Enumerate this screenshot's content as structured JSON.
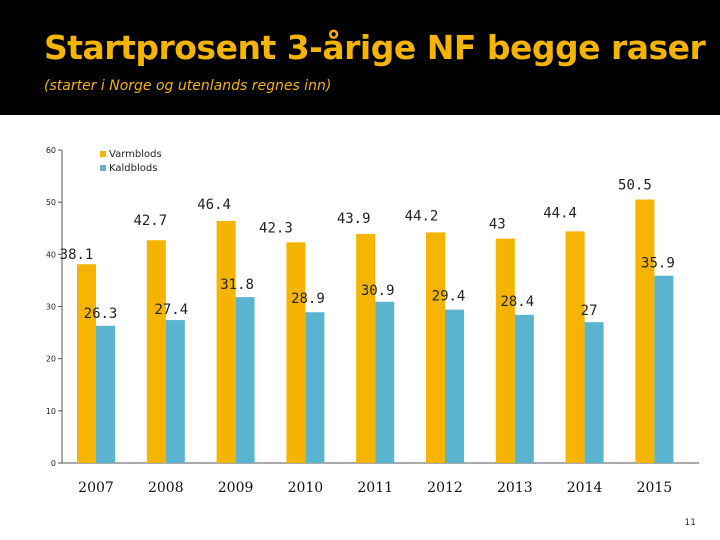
{
  "slide": {
    "title": "Startprosent 3-årige NF begge raser",
    "subtitle": "(starter i Norge og utenlands regnes inn)",
    "page_number": "11"
  },
  "chart_data": {
    "type": "bar",
    "title": "",
    "xlabel": "",
    "ylabel": "",
    "ylim": [
      0,
      60
    ],
    "yticks": [
      0,
      10,
      20,
      30,
      40,
      50,
      60
    ],
    "categories": [
      "2007",
      "2008",
      "2009",
      "2010",
      "2011",
      "2012",
      "2013",
      "2014",
      "2015"
    ],
    "series": [
      {
        "name": "Varmblods",
        "color": "#f4b400",
        "values": [
          38.1,
          42.7,
          46.4,
          42.3,
          43.9,
          44.2,
          43,
          44.4,
          50.5
        ],
        "labels": [
          "38.1",
          "42.7",
          "46.4",
          "42.3",
          "43.9",
          "44.2",
          "43",
          "44.4",
          "50.5"
        ]
      },
      {
        "name": "Kaldblods",
        "color": "#5ab4cf",
        "values": [
          26.3,
          27.4,
          31.8,
          28.9,
          30.9,
          29.4,
          28.4,
          27,
          35.9
        ],
        "labels": [
          "26.3",
          "27.4",
          "31.8",
          "28.9",
          "30.9",
          "29.4",
          "28.4",
          "27",
          "35.9"
        ]
      }
    ],
    "legend": "top-left"
  }
}
